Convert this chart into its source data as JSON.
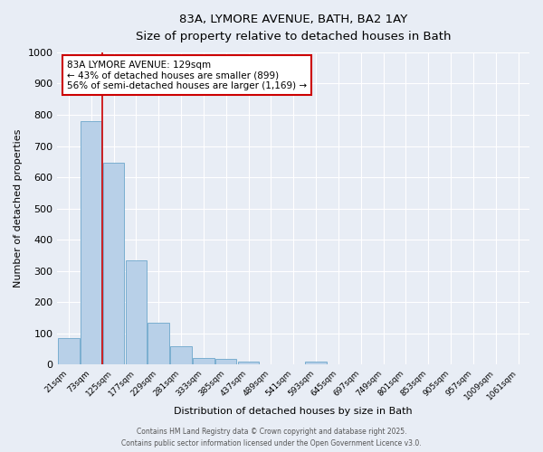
{
  "title_line1": "83A, LYMORE AVENUE, BATH, BA2 1AY",
  "title_line2": "Size of property relative to detached houses in Bath",
  "xlabel": "Distribution of detached houses by size in Bath",
  "ylabel": "Number of detached properties",
  "bar_labels": [
    "21sqm",
    "73sqm",
    "125sqm",
    "177sqm",
    "229sqm",
    "281sqm",
    "333sqm",
    "385sqm",
    "437sqm",
    "489sqm",
    "541sqm",
    "593sqm",
    "645sqm",
    "697sqm",
    "749sqm",
    "801sqm",
    "853sqm",
    "905sqm",
    "957sqm",
    "1009sqm",
    "1061sqm"
  ],
  "bar_values": [
    85,
    780,
    648,
    335,
    135,
    60,
    22,
    18,
    10,
    0,
    0,
    10,
    0,
    0,
    0,
    0,
    0,
    0,
    0,
    0,
    0
  ],
  "bar_color": "#b8d0e8",
  "bar_edgecolor": "#7aaed0",
  "vline_color": "#cc0000",
  "annotation_text": "83A LYMORE AVENUE: 129sqm\n← 43% of detached houses are smaller (899)\n56% of semi-detached houses are larger (1,169) →",
  "annotation_box_facecolor": "white",
  "annotation_box_edgecolor": "#cc0000",
  "ylim": [
    0,
    1000
  ],
  "yticks": [
    0,
    100,
    200,
    300,
    400,
    500,
    600,
    700,
    800,
    900,
    1000
  ],
  "background_color": "#e8edf5",
  "plot_bg_color": "#e8edf5",
  "grid_color": "white",
  "footer_line1": "Contains HM Land Registry data © Crown copyright and database right 2025.",
  "footer_line2": "Contains public sector information licensed under the Open Government Licence v3.0."
}
